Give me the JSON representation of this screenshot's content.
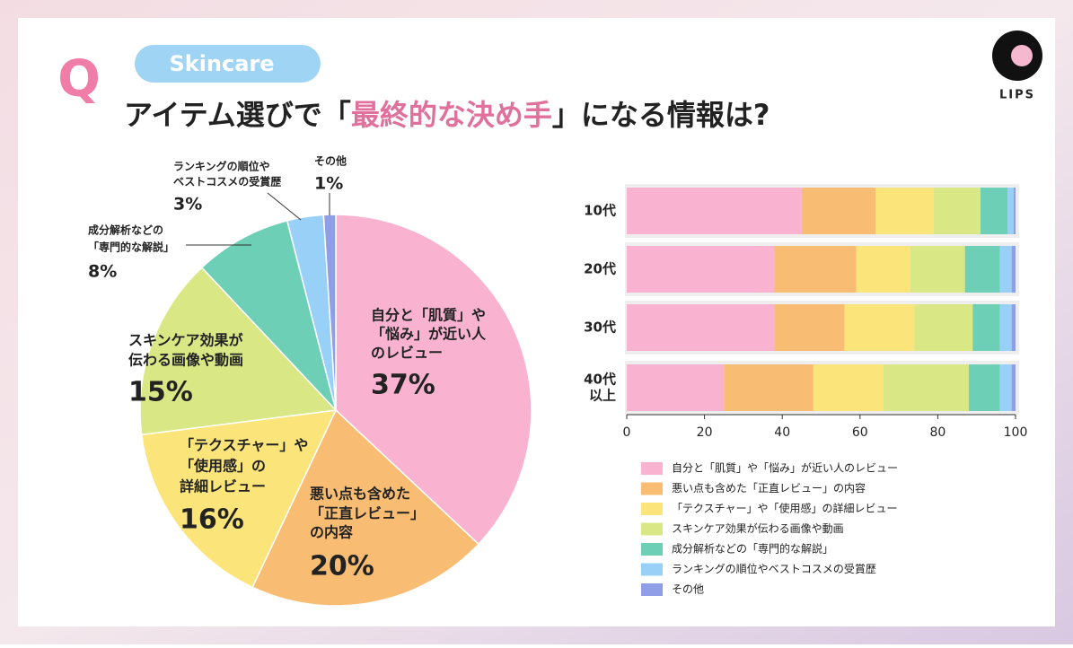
{
  "header": {
    "tag": "Skincare",
    "q": "Q",
    "title": [
      "アイテム選びで",
      "「",
      "最終的な決め手",
      "」",
      "になる情報は?"
    ],
    "logo": "LIPS"
  },
  "chart_data": [
    {
      "type": "pie",
      "categories": [
        [
          "自分と「肌質」や",
          "「悩み」が近い人",
          "のレビュー"
        ],
        [
          "悪い点も含めた",
          "「正直レビュー」",
          "の内容"
        ],
        [
          "「テクスチャー」や",
          "「使用感」の",
          "詳細レビュー"
        ],
        [
          "スキンケア効果が",
          "伝わる画像や動画"
        ],
        [
          "成分解析などの",
          "「専門的な解説」"
        ],
        [
          "ランキングの順位や",
          "ベストコスメの受賞歴"
        ],
        [
          "その他"
        ]
      ],
      "values": [
        37,
        20,
        16,
        15,
        8,
        3,
        1
      ],
      "value_labels": [
        "37%",
        "20%",
        "16%",
        "15%",
        "8%",
        "3%",
        "1%"
      ],
      "colors": [
        "#f9b3d1",
        "#f8bd73",
        "#fbe57b",
        "#d9e885",
        "#6dcfb5",
        "#99d0f8",
        "#8f9ee6"
      ]
    },
    {
      "type": "hbar-stacked",
      "categories": [
        [
          "10代"
        ],
        [
          "20代"
        ],
        [
          "30代"
        ],
        [
          "40代",
          "以上"
        ]
      ],
      "xlim": [
        0,
        100
      ],
      "xticks": [
        0,
        20,
        40,
        60,
        80,
        100
      ],
      "series": [
        {
          "name": "自分と「肌質」や「悩み」が近い人のレビュー",
          "color": "#f9b3d1",
          "values": [
            45,
            38,
            38,
            25
          ]
        },
        {
          "name": "悪い点も含めた「正直レビュー」の内容",
          "color": "#f8bd73",
          "values": [
            19,
            21,
            18,
            23
          ]
        },
        {
          "name": "「テクスチャー」や「使用感」の詳細レビュー",
          "color": "#fbe57b",
          "values": [
            15,
            14,
            18,
            18
          ]
        },
        {
          "name": "スキンケア効果が伝わる画像や動画",
          "color": "#d9e885",
          "values": [
            12,
            14,
            15,
            22
          ]
        },
        {
          "name": "成分解析などの「専門的な解説」",
          "color": "#6dcfb5",
          "values": [
            7,
            9,
            7,
            8
          ]
        },
        {
          "name": "ランキングの順位やベストコスメの受賞歴",
          "color": "#99d0f8",
          "values": [
            1.5,
            3,
            3,
            3
          ]
        },
        {
          "name": "その他",
          "color": "#8f9ee6",
          "values": [
            0.5,
            1,
            1,
            1
          ]
        }
      ]
    }
  ]
}
